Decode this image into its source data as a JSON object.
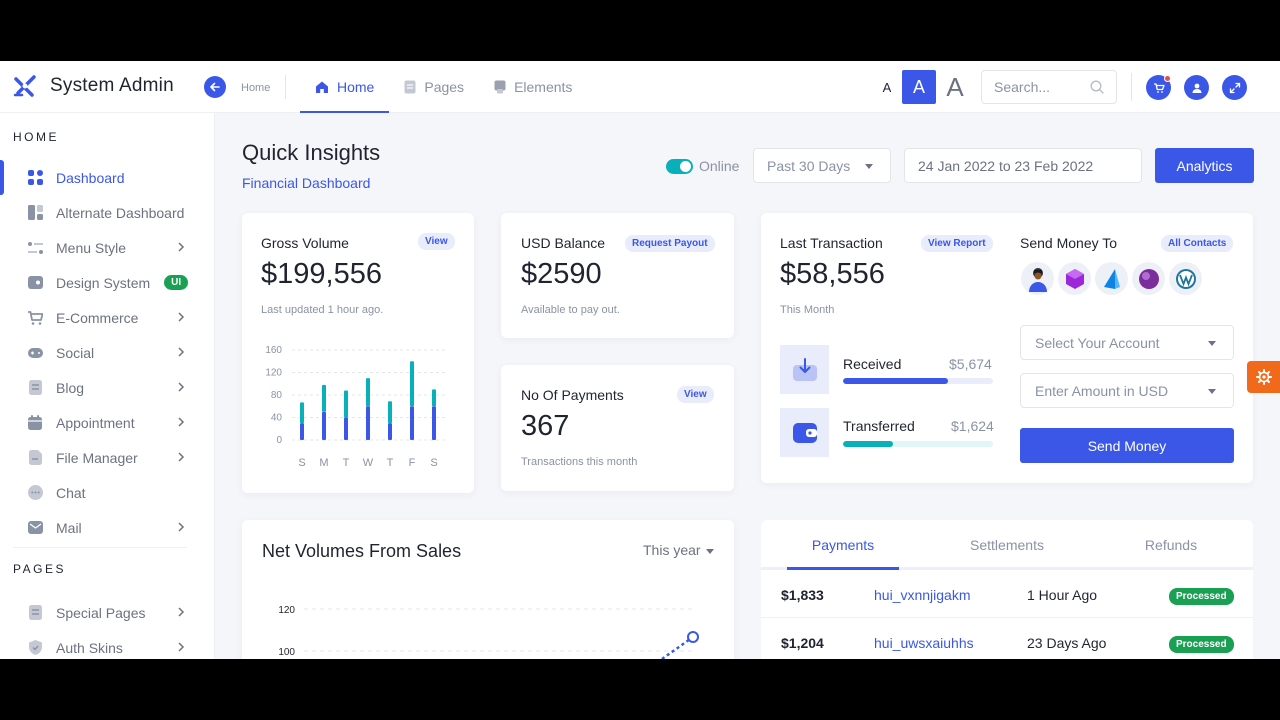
{
  "app": {
    "title": "System Admin"
  },
  "header": {
    "breadcrumb": "Home",
    "nav": [
      {
        "label": "Home",
        "icon": "home-icon",
        "active": true
      },
      {
        "label": "Pages",
        "icon": "document-icon",
        "active": false
      },
      {
        "label": "Elements",
        "icon": "elements-icon",
        "active": false
      }
    ],
    "font_sizes": [
      "A",
      "A",
      "A"
    ],
    "search_placeholder": "Search...",
    "accent": "#3a57e8"
  },
  "sidebar": {
    "sections": [
      {
        "heading": "HOME",
        "items": [
          {
            "label": "Dashboard",
            "icon": "grid-icon",
            "active": true,
            "chevron": false
          },
          {
            "label": "Alternate Dashboard",
            "icon": "layout-icon",
            "chevron": false
          },
          {
            "label": "Menu Style",
            "icon": "sliders-icon",
            "chevron": true
          },
          {
            "label": "Design System",
            "icon": "palette-icon",
            "chevron": false,
            "badge": "UI"
          },
          {
            "label": "E-Commerce",
            "icon": "cart-icon",
            "chevron": true
          },
          {
            "label": "Social",
            "icon": "gamepad-icon",
            "chevron": true
          },
          {
            "label": "Blog",
            "icon": "document-icon",
            "chevron": true
          },
          {
            "label": "Appointment",
            "icon": "calendar-icon",
            "chevron": true
          },
          {
            "label": "File Manager",
            "icon": "file-icon",
            "chevron": true
          },
          {
            "label": "Chat",
            "icon": "chat-icon",
            "chevron": false
          },
          {
            "label": "Mail",
            "icon": "mail-icon",
            "chevron": true
          }
        ]
      },
      {
        "heading": "PAGES",
        "items": [
          {
            "label": "Special Pages",
            "icon": "document-icon",
            "chevron": true
          },
          {
            "label": "Auth Skins",
            "icon": "shield-icon",
            "chevron": true
          }
        ]
      }
    ]
  },
  "main": {
    "title": "Quick Insights",
    "subtitle": "Financial Dashboard",
    "status_label": "Online",
    "period": "Past 30 Days",
    "date_range": "24 Jan 2022 to 23 Feb 2022",
    "analytics_label": "Analytics",
    "gross": {
      "label": "Gross Volume",
      "pill": "View",
      "value": "$199,556",
      "note": "Last updated 1 hour ago."
    },
    "usd": {
      "label": "USD Balance",
      "pill": "Request Payout",
      "value": "$2590",
      "note": "Available to pay out."
    },
    "payments": {
      "label": "No Of Payments",
      "pill": "View",
      "value": "367",
      "note": "Transactions this month"
    },
    "last_tx": {
      "label": "Last Transaction",
      "pill": "View Report",
      "value": "$58,556",
      "note": "This Month",
      "received": {
        "label": "Received",
        "value": "$5,674",
        "progress": 0.7,
        "color": "#3a57e8"
      },
      "transferred": {
        "label": "Transferred",
        "value": "$1,624",
        "progress": 0.33,
        "color": "#08b1ba"
      }
    },
    "send_money": {
      "label": "Send Money To",
      "pill": "All Contacts",
      "contacts": [
        "person-avatar-icon",
        "gem-icon",
        "pyramid-icon",
        "sphere-icon",
        "wordpress-icon"
      ],
      "account_placeholder": "Select Your Account",
      "amount_placeholder": "Enter Amount in USD",
      "button": "Send Money"
    },
    "net_volumes": {
      "title": "Net Volumes From Sales",
      "filter": "This year"
    },
    "tabs": [
      "Payments",
      "Settlements",
      "Refunds"
    ],
    "payments_table": [
      {
        "amount": "$1,833",
        "id": "hui_vxnnjigakm",
        "time": "1 Hour Ago",
        "status": "Processed"
      },
      {
        "amount": "$1,204",
        "id": "hui_uwsxaiuhhs",
        "time": "23 Days Ago",
        "status": "Processed"
      }
    ]
  },
  "chart_data": [
    {
      "type": "bar",
      "stacked": true,
      "categories": [
        "S",
        "M",
        "T",
        "W",
        "T",
        "F",
        "S"
      ],
      "series": [
        {
          "values": [
            30,
            50,
            40,
            60,
            30,
            60,
            60
          ],
          "color": "#3a57e8"
        },
        {
          "values": [
            37,
            48,
            48,
            50,
            39,
            80,
            30
          ],
          "color": "#08b1ba"
        }
      ],
      "yticks": [
        0,
        40,
        80,
        120,
        160
      ],
      "ylim": [
        0,
        160
      ],
      "grid": true
    },
    {
      "type": "line",
      "yticks": [
        100,
        120
      ],
      "grid": true,
      "partial": true
    }
  ]
}
